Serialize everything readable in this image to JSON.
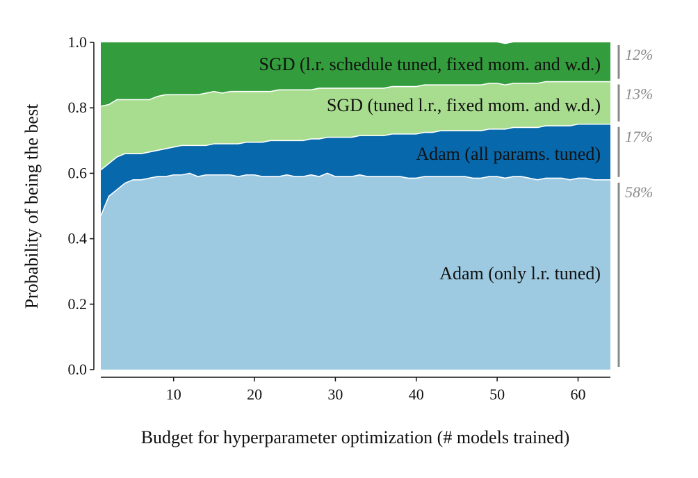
{
  "chart_data": {
    "type": "area",
    "stacked": true,
    "xlabel": "Budget for hyperparameter optimization (# models trained)",
    "ylabel": "Probability of being the best",
    "xlim": [
      1,
      64
    ],
    "ylim": [
      0.0,
      1.0
    ],
    "x_ticks": [
      10,
      20,
      30,
      40,
      50,
      60
    ],
    "y_ticks": [
      "0.0",
      "0.2",
      "0.4",
      "0.6",
      "0.8",
      "1.0"
    ],
    "grid": false,
    "x": [
      1,
      2,
      3,
      4,
      5,
      6,
      7,
      8,
      9,
      10,
      11,
      12,
      13,
      14,
      15,
      16,
      17,
      18,
      19,
      20,
      21,
      22,
      23,
      24,
      25,
      26,
      27,
      28,
      29,
      30,
      31,
      32,
      33,
      34,
      35,
      36,
      37,
      38,
      39,
      40,
      41,
      42,
      43,
      44,
      45,
      46,
      47,
      48,
      49,
      50,
      51,
      52,
      53,
      54,
      55,
      56,
      57,
      58,
      59,
      60,
      61,
      62,
      63,
      64
    ],
    "series": [
      {
        "name": "Adam (only l.r. tuned)",
        "share": "58%",
        "color": "#9ecae1",
        "values": [
          0.47,
          0.53,
          0.55,
          0.57,
          0.58,
          0.58,
          0.585,
          0.59,
          0.59,
          0.595,
          0.595,
          0.6,
          0.59,
          0.595,
          0.595,
          0.595,
          0.595,
          0.59,
          0.595,
          0.595,
          0.59,
          0.59,
          0.59,
          0.595,
          0.59,
          0.59,
          0.595,
          0.59,
          0.6,
          0.59,
          0.59,
          0.59,
          0.595,
          0.59,
          0.59,
          0.59,
          0.59,
          0.59,
          0.585,
          0.585,
          0.59,
          0.59,
          0.59,
          0.59,
          0.59,
          0.59,
          0.585,
          0.585,
          0.59,
          0.59,
          0.585,
          0.59,
          0.59,
          0.585,
          0.58,
          0.585,
          0.585,
          0.585,
          0.58,
          0.585,
          0.585,
          0.58,
          0.58,
          0.58
        ]
      },
      {
        "name": "Adam (all params. tuned)",
        "share": "17%",
        "color": "#0868ac",
        "values": [
          0.14,
          0.1,
          0.1,
          0.09,
          0.08,
          0.08,
          0.08,
          0.08,
          0.085,
          0.085,
          0.09,
          0.085,
          0.095,
          0.09,
          0.095,
          0.095,
          0.095,
          0.1,
          0.1,
          0.1,
          0.105,
          0.11,
          0.11,
          0.105,
          0.11,
          0.11,
          0.11,
          0.115,
          0.11,
          0.12,
          0.12,
          0.12,
          0.12,
          0.125,
          0.125,
          0.125,
          0.13,
          0.13,
          0.135,
          0.135,
          0.135,
          0.135,
          0.14,
          0.14,
          0.14,
          0.14,
          0.145,
          0.145,
          0.145,
          0.145,
          0.15,
          0.15,
          0.15,
          0.155,
          0.16,
          0.16,
          0.16,
          0.16,
          0.165,
          0.165,
          0.165,
          0.17,
          0.17,
          0.17
        ]
      },
      {
        "name": "SGD (tuned l.r., fixed mom. and w.d.)",
        "share": "13%",
        "color": "#a8dd8f",
        "values": [
          0.195,
          0.18,
          0.175,
          0.165,
          0.165,
          0.165,
          0.16,
          0.165,
          0.165,
          0.16,
          0.155,
          0.155,
          0.155,
          0.16,
          0.16,
          0.155,
          0.16,
          0.16,
          0.155,
          0.155,
          0.155,
          0.15,
          0.155,
          0.155,
          0.155,
          0.155,
          0.15,
          0.155,
          0.15,
          0.15,
          0.15,
          0.15,
          0.145,
          0.145,
          0.145,
          0.145,
          0.145,
          0.145,
          0.145,
          0.145,
          0.145,
          0.145,
          0.14,
          0.14,
          0.14,
          0.14,
          0.14,
          0.14,
          0.14,
          0.14,
          0.135,
          0.135,
          0.135,
          0.135,
          0.135,
          0.135,
          0.135,
          0.135,
          0.135,
          0.13,
          0.13,
          0.13,
          0.13,
          0.13
        ]
      },
      {
        "name": "SGD (l.r. schedule tuned, fixed mom. and w.d.)",
        "share": "12%",
        "color": "#339c3c",
        "values": [
          0.195,
          0.19,
          0.175,
          0.175,
          0.175,
          0.175,
          0.175,
          0.165,
          0.16,
          0.16,
          0.16,
          0.16,
          0.16,
          0.155,
          0.15,
          0.155,
          0.15,
          0.15,
          0.15,
          0.15,
          0.15,
          0.15,
          0.145,
          0.145,
          0.145,
          0.145,
          0.145,
          0.14,
          0.14,
          0.14,
          0.14,
          0.14,
          0.14,
          0.14,
          0.14,
          0.14,
          0.135,
          0.135,
          0.135,
          0.135,
          0.13,
          0.13,
          0.13,
          0.13,
          0.13,
          0.13,
          0.13,
          0.13,
          0.125,
          0.125,
          0.125,
          0.125,
          0.125,
          0.125,
          0.125,
          0.12,
          0.12,
          0.12,
          0.12,
          0.12,
          0.12,
          0.12,
          0.12,
          0.12
        ]
      }
    ]
  }
}
